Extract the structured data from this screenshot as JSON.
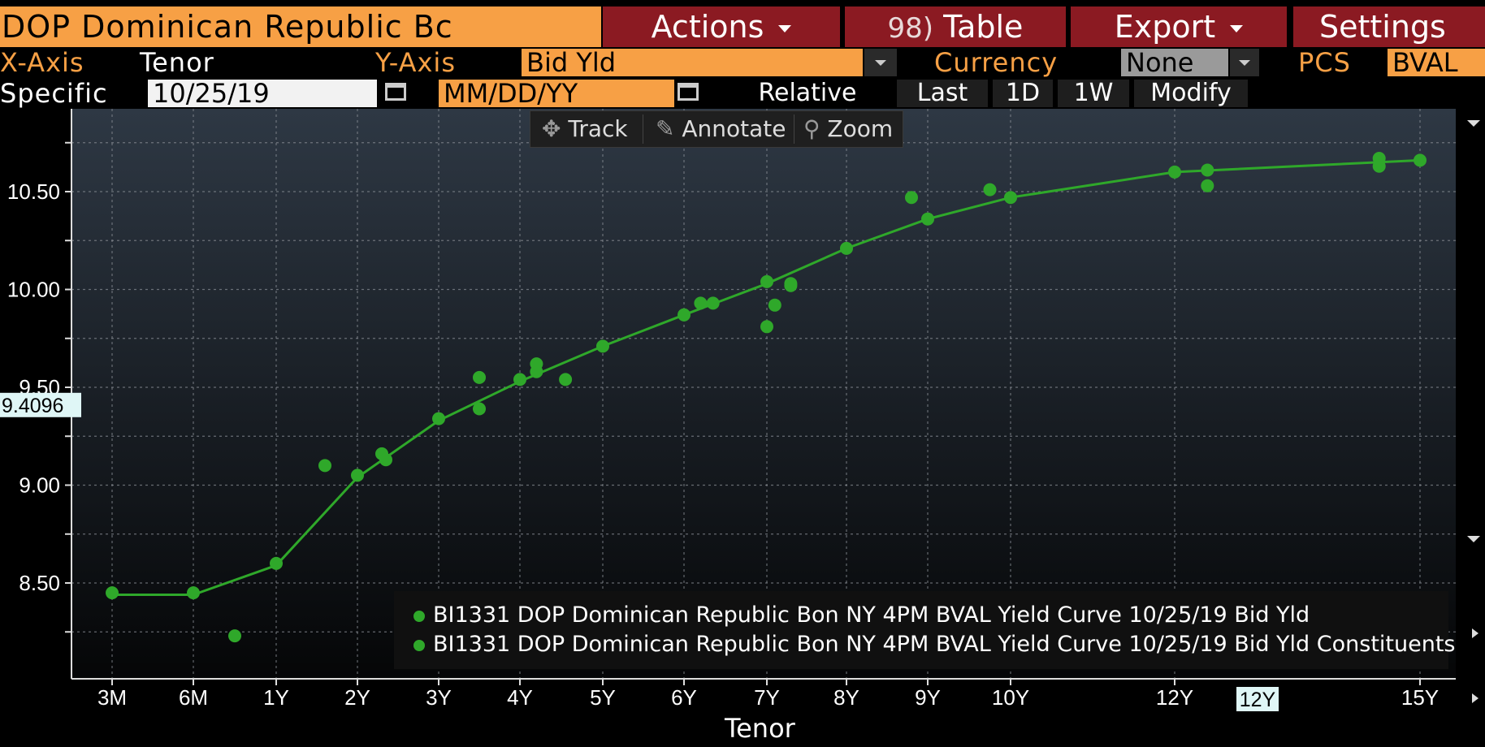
{
  "header": {
    "title": "DOP Dominican Republic Bc",
    "actions_label": "Actions",
    "table_num": "98)",
    "table_label": "Table",
    "export_label": "Export",
    "settings_label": "Settings"
  },
  "axis_bar": {
    "x_axis_label": "X-Axis",
    "x_axis_value": "Tenor",
    "y_axis_label": "Y-Axis",
    "y_axis_value": "Bid Yld",
    "currency_label": "Currency",
    "currency_value": "None",
    "pcs_label": "PCS",
    "pcs_value": "BVAL"
  },
  "date_bar": {
    "specific_label": "Specific",
    "date_value": "10/25/19",
    "compare_placeholder": "MM/DD/YY",
    "relative_label": "Relative",
    "last_label": "Last",
    "d1_label": "1D",
    "w1_label": "1W",
    "modify_label": "Modify"
  },
  "chart_tools": {
    "track_label": "Track",
    "annotate_label": "Annotate",
    "zoom_label": "Zoom"
  },
  "colors": {
    "accent": "#f7a045",
    "menu": "#8b1a22",
    "series": "#2fa82a"
  },
  "chart_data": {
    "type": "line",
    "xlabel": "Tenor",
    "ylabel": "",
    "x_ticks": [
      {
        "label": "3M",
        "t": 0.25
      },
      {
        "label": "6M",
        "t": 0.5
      },
      {
        "label": "1Y",
        "t": 1
      },
      {
        "label": "2Y",
        "t": 2
      },
      {
        "label": "3Y",
        "t": 3
      },
      {
        "label": "4Y",
        "t": 4
      },
      {
        "label": "5Y",
        "t": 5
      },
      {
        "label": "6Y",
        "t": 6
      },
      {
        "label": "7Y",
        "t": 7
      },
      {
        "label": "8Y",
        "t": 8
      },
      {
        "label": "9Y",
        "t": 9
      },
      {
        "label": "10Y",
        "t": 10
      },
      {
        "label": "12Y",
        "t": 12
      },
      {
        "label": "15Y",
        "t": 15
      }
    ],
    "y_ticks": [
      "8.50",
      "9.00",
      "9.50",
      "10.00",
      "10.50"
    ],
    "ylim": [
      8.25,
      10.75
    ],
    "grid": true,
    "legend_position": "bottom-right",
    "crosshair": {
      "y_label": "9.4096",
      "x_label": "12Y"
    },
    "series": [
      {
        "name": "BI1331 DOP Dominican Republic Bon NY 4PM BVAL Yield Curve 10/25/19 Bid Yld",
        "kind": "line",
        "points": [
          [
            0.25,
            8.44
          ],
          [
            0.5,
            8.44
          ],
          [
            1,
            8.59
          ],
          [
            2,
            9.04
          ],
          [
            3,
            9.33
          ],
          [
            4,
            9.53
          ],
          [
            5,
            9.71
          ],
          [
            6,
            9.87
          ],
          [
            7,
            10.03
          ],
          [
            8,
            10.21
          ],
          [
            9,
            10.36
          ],
          [
            10,
            10.47
          ],
          [
            12,
            10.6
          ],
          [
            15,
            10.66
          ]
        ]
      },
      {
        "name": "BI1331 DOP Dominican Republic Bon NY 4PM BVAL Yield Curve 10/25/19 Bid Yld Constituents",
        "kind": "scatter",
        "points": [
          [
            0.25,
            8.45
          ],
          [
            0.5,
            8.45
          ],
          [
            0.75,
            8.23
          ],
          [
            1,
            8.6
          ],
          [
            1.6,
            9.1
          ],
          [
            2,
            9.05
          ],
          [
            2.3,
            9.16
          ],
          [
            2.35,
            9.13
          ],
          [
            3,
            9.34
          ],
          [
            3.5,
            9.39
          ],
          [
            3.5,
            9.55
          ],
          [
            4,
            9.54
          ],
          [
            4.2,
            9.58
          ],
          [
            4.2,
            9.62
          ],
          [
            4.55,
            9.54
          ],
          [
            5,
            9.71
          ],
          [
            6,
            9.87
          ],
          [
            6.2,
            9.93
          ],
          [
            6.35,
            9.93
          ],
          [
            7,
            10.04
          ],
          [
            7,
            9.81
          ],
          [
            7.1,
            9.92
          ],
          [
            7.3,
            10.03
          ],
          [
            7.3,
            10.02
          ],
          [
            8,
            10.21
          ],
          [
            8.8,
            10.47
          ],
          [
            9,
            10.36
          ],
          [
            9.75,
            10.51
          ],
          [
            10,
            10.47
          ],
          [
            12,
            10.6
          ],
          [
            12.4,
            10.61
          ],
          [
            12.4,
            10.53
          ],
          [
            14.5,
            10.67
          ],
          [
            14.5,
            10.63
          ],
          [
            15,
            10.66
          ]
        ]
      }
    ]
  }
}
